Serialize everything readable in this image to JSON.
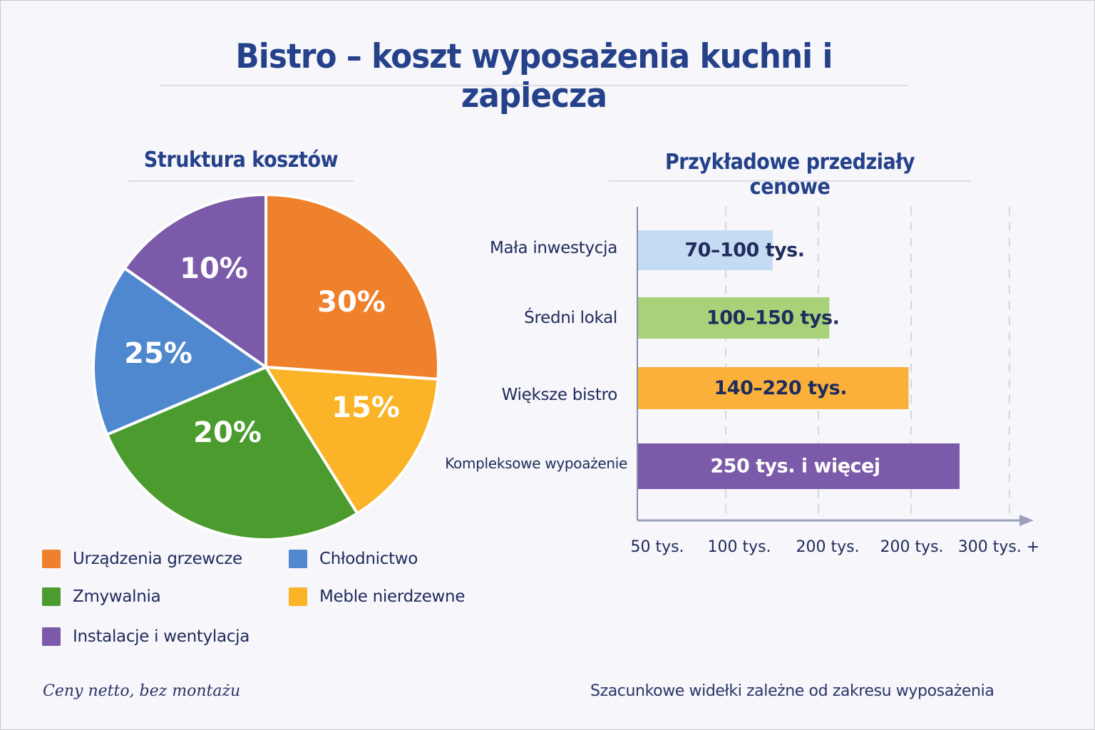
{
  "title": "Bistro – koszt wyposażenia kuchni i zaplecza",
  "chart_data": [
    {
      "type": "pie",
      "title": "Struktura kosztów",
      "slices": [
        {
          "label": "Urządzenia grzewcze",
          "value": 30,
          "display": "30%",
          "color": "#f0812c"
        },
        {
          "label": "Meble nierdzewne",
          "value": 15,
          "display": "15%",
          "color": "#fbb427"
        },
        {
          "label": "Zmywalnia",
          "value": 20,
          "display": "20%",
          "color": "#4b9b2e"
        },
        {
          "label": "Chłodnictwo",
          "value": 25,
          "display": "25%",
          "color": "#4f88cf"
        },
        {
          "label": "Instalacje i wentylacja",
          "value": 10,
          "display": "10%",
          "color": "#7b5aa9"
        }
      ],
      "legend": [
        {
          "label": "Urządzenia grzewcze",
          "color": "#f0812c"
        },
        {
          "label": "Chłodnictwo",
          "color": "#4f88cf"
        },
        {
          "label": "Zmywalnia",
          "color": "#4b9b2e"
        },
        {
          "label": "Meble nierdzewne",
          "color": "#fbb427"
        },
        {
          "label": "Instalacje i wentylacja",
          "color": "#7b5aa9"
        }
      ],
      "legend_position": "bottom"
    },
    {
      "type": "bar",
      "orientation": "horizontal",
      "title": "Przykładowe przedziały cenowe",
      "categories": [
        "Mała inwestycja",
        "Średni lokal",
        "Większe bistro",
        "Kompleksowe wypoażenie"
      ],
      "bars": [
        {
          "label": "70–100 tys.",
          "range": [
            70,
            100
          ],
          "color": "#c5dbf4",
          "text_color": "#1f2d5c"
        },
        {
          "label": "100–150 tys.",
          "range": [
            100,
            150
          ],
          "color": "#a8d27a",
          "text_color": "#1f2d5c"
        },
        {
          "label": "140–220 tys.",
          "range": [
            140,
            220
          ],
          "color": "#fbb03b",
          "text_color": "#1f2d5c"
        },
        {
          "label": "250 tys. i więcej",
          "range": [
            250,
            null
          ],
          "color": "#7b5aa9",
          "text_color": "#ffffff"
        }
      ],
      "x_ticks": [
        "50 tys.",
        "100 tys.",
        "200 tys.",
        "200 tys.",
        "300 tys. +"
      ],
      "grid": "vertical-dashed"
    }
  ],
  "footnotes": {
    "left": "Ceny netto, bez montażu",
    "right": "Szacunkowe widełki zależne od zakresu wyposażenia"
  }
}
